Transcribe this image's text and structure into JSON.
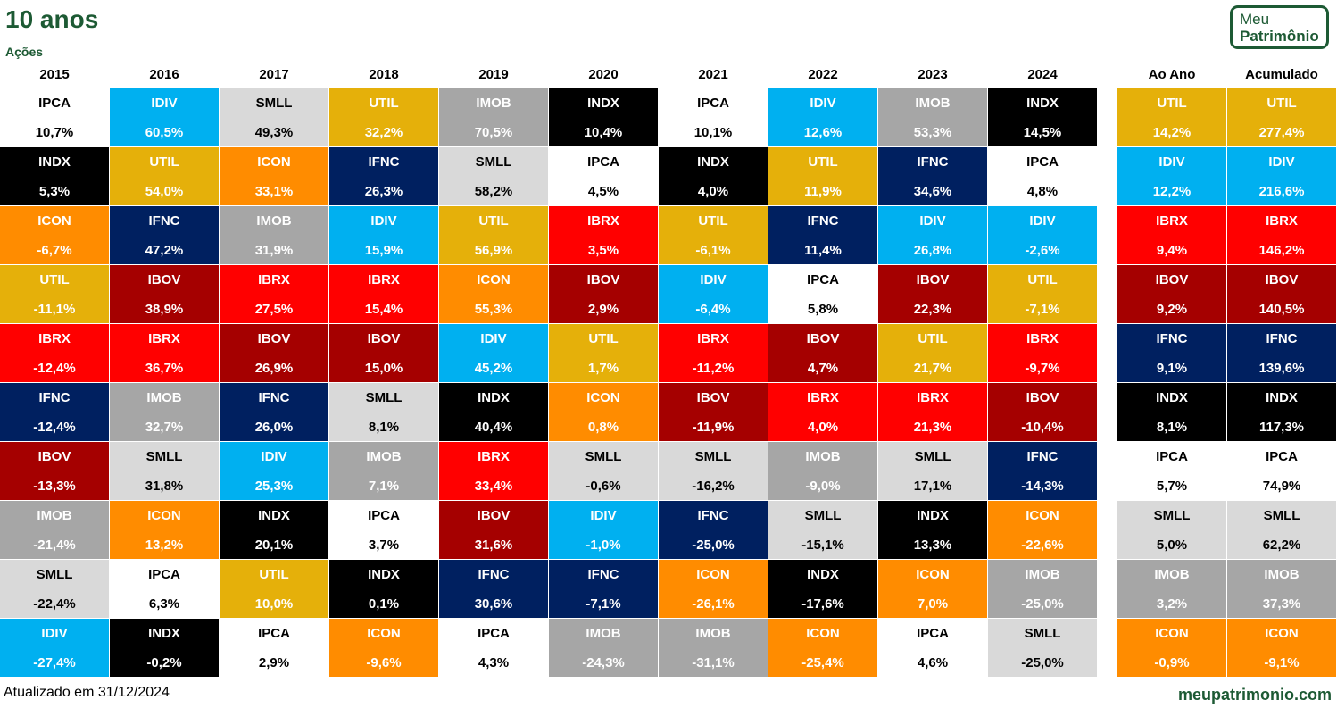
{
  "header": {
    "title": "10 anos",
    "subtitle": "Ações"
  },
  "logo": {
    "line1": "Meu",
    "line2": "Patrimônio"
  },
  "footer": {
    "updated": "Atualizado em 31/12/2024",
    "site": "meupatrimonio.com"
  },
  "index_colors": {
    "IPCA": "#ffffff",
    "IDIV": "#00b0f0",
    "SMLL": "#d9d9d9",
    "UTIL": "#e5b00a",
    "IMOB": "#a6a6a6",
    "INDX": "#000000",
    "ICON": "#ff8c00",
    "IFNC": "#002060",
    "IBRX": "#ff0000",
    "IBOV": "#a50000"
  },
  "text_colors": {
    "IPCA": "#000000",
    "IDIV": "#ffffff",
    "SMLL": "#000000",
    "UTIL": "#ffffff",
    "IMOB": "#ffffff",
    "INDX": "#ffffff",
    "ICON": "#ffffff",
    "IFNC": "#ffffff",
    "IBRX": "#ffffff",
    "IBOV": "#ffffff"
  },
  "chart_data": {
    "type": "table",
    "title": "10 anos",
    "subtitle": "Ações",
    "columns": [
      "2015",
      "2016",
      "2017",
      "2018",
      "2019",
      "2020",
      "2021",
      "2022",
      "2023",
      "2024",
      "Ao Ano",
      "Acumulado"
    ],
    "series": [
      {
        "name": "2015",
        "entries": [
          [
            "IPCA",
            "10,7%"
          ],
          [
            "INDX",
            "5,3%"
          ],
          [
            "ICON",
            "-6,7%"
          ],
          [
            "UTIL",
            "-11,1%"
          ],
          [
            "IBRX",
            "-12,4%"
          ],
          [
            "IFNC",
            "-12,4%"
          ],
          [
            "IBOV",
            "-13,3%"
          ],
          [
            "IMOB",
            "-21,4%"
          ],
          [
            "SMLL",
            "-22,4%"
          ],
          [
            "IDIV",
            "-27,4%"
          ]
        ]
      },
      {
        "name": "2016",
        "entries": [
          [
            "IDIV",
            "60,5%"
          ],
          [
            "UTIL",
            "54,0%"
          ],
          [
            "IFNC",
            "47,2%"
          ],
          [
            "IBOV",
            "38,9%"
          ],
          [
            "IBRX",
            "36,7%"
          ],
          [
            "IMOB",
            "32,7%"
          ],
          [
            "SMLL",
            "31,8%"
          ],
          [
            "ICON",
            "13,2%"
          ],
          [
            "IPCA",
            "6,3%"
          ],
          [
            "INDX",
            "-0,2%"
          ]
        ]
      },
      {
        "name": "2017",
        "entries": [
          [
            "SMLL",
            "49,3%"
          ],
          [
            "ICON",
            "33,1%"
          ],
          [
            "IMOB",
            "31,9%"
          ],
          [
            "IBRX",
            "27,5%"
          ],
          [
            "IBOV",
            "26,9%"
          ],
          [
            "IFNC",
            "26,0%"
          ],
          [
            "IDIV",
            "25,3%"
          ],
          [
            "INDX",
            "20,1%"
          ],
          [
            "UTIL",
            "10,0%"
          ],
          [
            "IPCA",
            "2,9%"
          ]
        ]
      },
      {
        "name": "2018",
        "entries": [
          [
            "UTIL",
            "32,2%"
          ],
          [
            "IFNC",
            "26,3%"
          ],
          [
            "IDIV",
            "15,9%"
          ],
          [
            "IBRX",
            "15,4%"
          ],
          [
            "IBOV",
            "15,0%"
          ],
          [
            "SMLL",
            "8,1%"
          ],
          [
            "IMOB",
            "7,1%"
          ],
          [
            "IPCA",
            "3,7%"
          ],
          [
            "INDX",
            "0,1%"
          ],
          [
            "ICON",
            "-9,6%"
          ]
        ]
      },
      {
        "name": "2019",
        "entries": [
          [
            "IMOB",
            "70,5%"
          ],
          [
            "SMLL",
            "58,2%"
          ],
          [
            "UTIL",
            "56,9%"
          ],
          [
            "ICON",
            "55,3%"
          ],
          [
            "IDIV",
            "45,2%"
          ],
          [
            "INDX",
            "40,4%"
          ],
          [
            "IBRX",
            "33,4%"
          ],
          [
            "IBOV",
            "31,6%"
          ],
          [
            "IFNC",
            "30,6%"
          ],
          [
            "IPCA",
            "4,3%"
          ]
        ]
      },
      {
        "name": "2020",
        "entries": [
          [
            "INDX",
            "10,4%"
          ],
          [
            "IPCA",
            "4,5%"
          ],
          [
            "IBRX",
            "3,5%"
          ],
          [
            "IBOV",
            "2,9%"
          ],
          [
            "UTIL",
            "1,7%"
          ],
          [
            "ICON",
            "0,8%"
          ],
          [
            "SMLL",
            "-0,6%"
          ],
          [
            "IDIV",
            "-1,0%"
          ],
          [
            "IFNC",
            "-7,1%"
          ],
          [
            "IMOB",
            "-24,3%"
          ]
        ]
      },
      {
        "name": "2021",
        "entries": [
          [
            "IPCA",
            "10,1%"
          ],
          [
            "INDX",
            "4,0%"
          ],
          [
            "UTIL",
            "-6,1%"
          ],
          [
            "IDIV",
            "-6,4%"
          ],
          [
            "IBRX",
            "-11,2%"
          ],
          [
            "IBOV",
            "-11,9%"
          ],
          [
            "SMLL",
            "-16,2%"
          ],
          [
            "IFNC",
            "-25,0%"
          ],
          [
            "ICON",
            "-26,1%"
          ],
          [
            "IMOB",
            "-31,1%"
          ]
        ]
      },
      {
        "name": "2022",
        "entries": [
          [
            "IDIV",
            "12,6%"
          ],
          [
            "UTIL",
            "11,9%"
          ],
          [
            "IFNC",
            "11,4%"
          ],
          [
            "IPCA",
            "5,8%"
          ],
          [
            "IBOV",
            "4,7%"
          ],
          [
            "IBRX",
            "4,0%"
          ],
          [
            "IMOB",
            "-9,0%"
          ],
          [
            "SMLL",
            "-15,1%"
          ],
          [
            "INDX",
            "-17,6%"
          ],
          [
            "ICON",
            "-25,4%"
          ]
        ]
      },
      {
        "name": "2023",
        "entries": [
          [
            "IMOB",
            "53,3%"
          ],
          [
            "IFNC",
            "34,6%"
          ],
          [
            "IDIV",
            "26,8%"
          ],
          [
            "IBOV",
            "22,3%"
          ],
          [
            "UTIL",
            "21,7%"
          ],
          [
            "IBRX",
            "21,3%"
          ],
          [
            "SMLL",
            "17,1%"
          ],
          [
            "INDX",
            "13,3%"
          ],
          [
            "ICON",
            "7,0%"
          ],
          [
            "IPCA",
            "4,6%"
          ]
        ]
      },
      {
        "name": "2024",
        "entries": [
          [
            "INDX",
            "14,5%"
          ],
          [
            "IPCA",
            "4,8%"
          ],
          [
            "IDIV",
            "-2,6%"
          ],
          [
            "UTIL",
            "-7,1%"
          ],
          [
            "IBRX",
            "-9,7%"
          ],
          [
            "IBOV",
            "-10,4%"
          ],
          [
            "IFNC",
            "-14,3%"
          ],
          [
            "ICON",
            "-22,6%"
          ],
          [
            "IMOB",
            "-25,0%"
          ],
          [
            "SMLL",
            "-25,0%"
          ]
        ]
      },
      {
        "name": "Ao Ano",
        "entries": [
          [
            "UTIL",
            "14,2%"
          ],
          [
            "IDIV",
            "12,2%"
          ],
          [
            "IBRX",
            "9,4%"
          ],
          [
            "IBOV",
            "9,2%"
          ],
          [
            "IFNC",
            "9,1%"
          ],
          [
            "INDX",
            "8,1%"
          ],
          [
            "IPCA",
            "5,7%"
          ],
          [
            "SMLL",
            "5,0%"
          ],
          [
            "IMOB",
            "3,2%"
          ],
          [
            "ICON",
            "-0,9%"
          ]
        ]
      },
      {
        "name": "Acumulado",
        "entries": [
          [
            "UTIL",
            "277,4%"
          ],
          [
            "IDIV",
            "216,6%"
          ],
          [
            "IBRX",
            "146,2%"
          ],
          [
            "IBOV",
            "140,5%"
          ],
          [
            "IFNC",
            "139,6%"
          ],
          [
            "INDX",
            "117,3%"
          ],
          [
            "IPCA",
            "74,9%"
          ],
          [
            "SMLL",
            "62,2%"
          ],
          [
            "IMOB",
            "37,3%"
          ],
          [
            "ICON",
            "-9,1%"
          ]
        ]
      }
    ]
  }
}
